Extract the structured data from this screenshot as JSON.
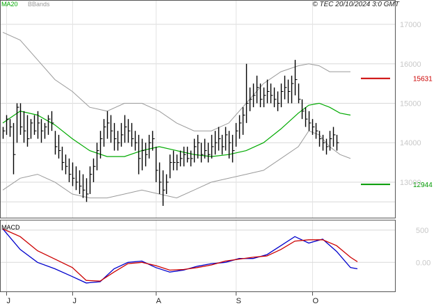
{
  "header": {
    "legend": [
      {
        "label": "MA20",
        "color": "#00aa00"
      },
      {
        "label": "BBands",
        "color": "#9a9a9a"
      }
    ],
    "copyright": "© TEC 20/10/2024 3:0 GMT"
  },
  "price_panel": {
    "y_ticks": [
      "17000",
      "16000",
      "15000",
      "14000",
      "13000"
    ],
    "levels": [
      {
        "label": "15631",
        "value": 15631,
        "color": "#cc0000"
      },
      {
        "label": "12944",
        "value": 12944,
        "color": "#009900"
      }
    ]
  },
  "macd_panel": {
    "label": "MACD",
    "y_ticks": [
      "500",
      "0.00"
    ]
  },
  "x_axis": {
    "month_labels": [
      "J",
      "J",
      "A",
      "S",
      "O"
    ]
  },
  "chart_data": [
    {
      "type": "ohlc",
      "y_range": [
        12100,
        17600
      ],
      "series_colors": {
        "price": "#000000",
        "ma20": "#00aa00",
        "bbands": "#9a9a9a"
      },
      "month_starts": [
        1,
        20,
        44,
        67,
        89
      ],
      "grid": true,
      "bars": [
        {
          "h": 14400,
          "l": 14100,
          "c": 14300
        },
        {
          "h": 14700,
          "l": 14200,
          "c": 14600
        },
        {
          "h": 14600,
          "l": 14150,
          "c": 14400
        },
        {
          "h": 14500,
          "l": 13200,
          "c": 13700
        },
        {
          "h": 15000,
          "l": 14000,
          "c": 14900
        },
        {
          "h": 15000,
          "l": 14200,
          "c": 14400
        },
        {
          "h": 14800,
          "l": 14000,
          "c": 14300
        },
        {
          "h": 14700,
          "l": 13900,
          "c": 14100
        },
        {
          "h": 14600,
          "l": 14100,
          "c": 14500
        },
        {
          "h": 14700,
          "l": 14200,
          "c": 14300
        },
        {
          "h": 14800,
          "l": 14100,
          "c": 14500
        },
        {
          "h": 14600,
          "l": 14000,
          "c": 14300
        },
        {
          "h": 14500,
          "l": 14100,
          "c": 14400
        },
        {
          "h": 14700,
          "l": 14200,
          "c": 14600
        },
        {
          "h": 14800,
          "l": 14300,
          "c": 14500
        },
        {
          "h": 14300,
          "l": 13700,
          "c": 13900
        },
        {
          "h": 14200,
          "l": 13600,
          "c": 13800
        },
        {
          "h": 13900,
          "l": 13300,
          "c": 13500
        },
        {
          "h": 13700,
          "l": 13200,
          "c": 13400
        },
        {
          "h": 13600,
          "l": 13000,
          "c": 13200
        },
        {
          "h": 13500,
          "l": 12900,
          "c": 13100
        },
        {
          "h": 13400,
          "l": 12800,
          "c": 13000
        },
        {
          "h": 13300,
          "l": 12700,
          "c": 12900
        },
        {
          "h": 13200,
          "l": 12600,
          "c": 12800
        },
        {
          "h": 13100,
          "l": 12500,
          "c": 12700
        },
        {
          "h": 13400,
          "l": 12700,
          "c": 13200
        },
        {
          "h": 13600,
          "l": 13000,
          "c": 13400
        },
        {
          "h": 14000,
          "l": 13300,
          "c": 13800
        },
        {
          "h": 14300,
          "l": 13600,
          "c": 14100
        },
        {
          "h": 14600,
          "l": 13900,
          "c": 14400
        },
        {
          "h": 14800,
          "l": 14100,
          "c": 14500
        },
        {
          "h": 14700,
          "l": 14000,
          "c": 14300
        },
        {
          "h": 14500,
          "l": 13800,
          "c": 14100
        },
        {
          "h": 14300,
          "l": 13800,
          "c": 14000
        },
        {
          "h": 14500,
          "l": 13900,
          "c": 14200
        },
        {
          "h": 14700,
          "l": 14000,
          "c": 14400
        },
        {
          "h": 14600,
          "l": 14000,
          "c": 14300
        },
        {
          "h": 14500,
          "l": 13900,
          "c": 14100
        },
        {
          "h": 14300,
          "l": 13800,
          "c": 14000
        },
        {
          "h": 14200,
          "l": 13200,
          "c": 13600
        },
        {
          "h": 14100,
          "l": 13300,
          "c": 13800
        },
        {
          "h": 14000,
          "l": 13400,
          "c": 13700
        },
        {
          "h": 14200,
          "l": 13600,
          "c": 14000
        },
        {
          "h": 14300,
          "l": 13800,
          "c": 14100
        },
        {
          "h": 13900,
          "l": 13000,
          "c": 13300
        },
        {
          "h": 13500,
          "l": 12700,
          "c": 13000
        },
        {
          "h": 13300,
          "l": 12400,
          "c": 12800
        },
        {
          "h": 13200,
          "l": 12700,
          "c": 13000
        },
        {
          "h": 13700,
          "l": 13100,
          "c": 13500
        },
        {
          "h": 13800,
          "l": 13300,
          "c": 13500
        },
        {
          "h": 13700,
          "l": 13300,
          "c": 13500
        },
        {
          "h": 13800,
          "l": 13400,
          "c": 13600
        },
        {
          "h": 13900,
          "l": 13400,
          "c": 13700
        },
        {
          "h": 13900,
          "l": 13500,
          "c": 13600
        },
        {
          "h": 13800,
          "l": 13400,
          "c": 13600
        },
        {
          "h": 14100,
          "l": 13500,
          "c": 13900
        },
        {
          "h": 14200,
          "l": 13600,
          "c": 14000
        },
        {
          "h": 14000,
          "l": 13500,
          "c": 13700
        },
        {
          "h": 14100,
          "l": 13600,
          "c": 13800
        },
        {
          "h": 14000,
          "l": 13500,
          "c": 13700
        },
        {
          "h": 14200,
          "l": 13600,
          "c": 13900
        },
        {
          "h": 14300,
          "l": 13700,
          "c": 14000
        },
        {
          "h": 14400,
          "l": 13800,
          "c": 14100
        },
        {
          "h": 14200,
          "l": 13700,
          "c": 13900
        },
        {
          "h": 14400,
          "l": 13800,
          "c": 14200
        },
        {
          "h": 14300,
          "l": 13600,
          "c": 14000
        },
        {
          "h": 14200,
          "l": 13500,
          "c": 13800
        },
        {
          "h": 14500,
          "l": 13900,
          "c": 14300
        },
        {
          "h": 14700,
          "l": 14100,
          "c": 14500
        },
        {
          "h": 14900,
          "l": 14200,
          "c": 14700
        },
        {
          "h": 16000,
          "l": 14500,
          "c": 15000
        },
        {
          "h": 15400,
          "l": 14800,
          "c": 15100
        },
        {
          "h": 15500,
          "l": 14900,
          "c": 15200
        },
        {
          "h": 15700,
          "l": 15000,
          "c": 15400
        },
        {
          "h": 15500,
          "l": 14900,
          "c": 15100
        },
        {
          "h": 15400,
          "l": 14900,
          "c": 15200
        },
        {
          "h": 15600,
          "l": 15000,
          "c": 15300
        },
        {
          "h": 15500,
          "l": 15000,
          "c": 15200
        },
        {
          "h": 15400,
          "l": 14900,
          "c": 15100
        },
        {
          "h": 15300,
          "l": 14800,
          "c": 15000
        },
        {
          "h": 15500,
          "l": 14900,
          "c": 15300
        },
        {
          "h": 15700,
          "l": 15100,
          "c": 15400
        },
        {
          "h": 15600,
          "l": 15000,
          "c": 15300
        },
        {
          "h": 15700,
          "l": 15000,
          "c": 15500
        },
        {
          "h": 16100,
          "l": 15200,
          "c": 15600
        },
        {
          "h": 15500,
          "l": 15000,
          "c": 15100
        },
        {
          "h": 15100,
          "l": 14600,
          "c": 14800
        },
        {
          "h": 14900,
          "l": 14400,
          "c": 14600
        },
        {
          "h": 14800,
          "l": 14300,
          "c": 14500
        },
        {
          "h": 14600,
          "l": 14200,
          "c": 14400
        },
        {
          "h": 14500,
          "l": 14100,
          "c": 14300
        },
        {
          "h": 14300,
          "l": 13900,
          "c": 14100
        },
        {
          "h": 14200,
          "l": 13800,
          "c": 14000
        },
        {
          "h": 14100,
          "l": 13700,
          "c": 13900
        },
        {
          "h": 14300,
          "l": 13800,
          "c": 14100
        },
        {
          "h": 14400,
          "l": 13900,
          "c": 14200
        },
        {
          "h": 14200,
          "l": 13800,
          "c": 14000
        }
      ],
      "ma20": [
        [
          0,
          14500
        ],
        [
          5,
          14800
        ],
        [
          10,
          14700
        ],
        [
          15,
          14450
        ],
        [
          20,
          14100
        ],
        [
          25,
          13800
        ],
        [
          30,
          13650
        ],
        [
          35,
          13650
        ],
        [
          40,
          13800
        ],
        [
          45,
          13900
        ],
        [
          50,
          13800
        ],
        [
          55,
          13700
        ],
        [
          60,
          13650
        ],
        [
          65,
          13700
        ],
        [
          70,
          13800
        ],
        [
          75,
          14000
        ],
        [
          80,
          14350
        ],
        [
          85,
          14750
        ],
        [
          88,
          14950
        ],
        [
          91,
          15000
        ],
        [
          94,
          14900
        ],
        [
          97,
          14750
        ],
        [
          100,
          14700
        ]
      ],
      "bb_upper": [
        [
          0,
          16800
        ],
        [
          5,
          16600
        ],
        [
          10,
          16100
        ],
        [
          15,
          15600
        ],
        [
          20,
          15300
        ],
        [
          25,
          14900
        ],
        [
          30,
          14800
        ],
        [
          35,
          15000
        ],
        [
          40,
          15000
        ],
        [
          45,
          14800
        ],
        [
          50,
          14500
        ],
        [
          55,
          14300
        ],
        [
          60,
          14300
        ],
        [
          65,
          14500
        ],
        [
          70,
          15000
        ],
        [
          75,
          15500
        ],
        [
          80,
          15800
        ],
        [
          85,
          15950
        ],
        [
          88,
          16000
        ],
        [
          91,
          15950
        ],
        [
          94,
          15800
        ],
        [
          97,
          15800
        ],
        [
          100,
          15800
        ]
      ],
      "bb_lower": [
        [
          0,
          12800
        ],
        [
          5,
          13100
        ],
        [
          10,
          13200
        ],
        [
          15,
          13000
        ],
        [
          20,
          12700
        ],
        [
          25,
          12600
        ],
        [
          30,
          12600
        ],
        [
          35,
          12700
        ],
        [
          40,
          12800
        ],
        [
          45,
          12700
        ],
        [
          50,
          12600
        ],
        [
          55,
          12800
        ],
        [
          60,
          13000
        ],
        [
          65,
          13100
        ],
        [
          70,
          13200
        ],
        [
          75,
          13300
        ],
        [
          80,
          13600
        ],
        [
          85,
          13900
        ],
        [
          88,
          14300
        ],
        [
          91,
          14200
        ],
        [
          94,
          13900
        ],
        [
          97,
          13700
        ],
        [
          100,
          13600
        ]
      ]
    },
    {
      "type": "line",
      "name": "MACD",
      "y_range": [
        -450,
        650
      ],
      "series": [
        {
          "color": "#0000cc",
          "points": [
            [
              0,
              520
            ],
            [
              5,
              200
            ],
            [
              10,
              0
            ],
            [
              15,
              -100
            ],
            [
              20,
              -220
            ],
            [
              24,
              -320
            ],
            [
              28,
              -300
            ],
            [
              32,
              -100
            ],
            [
              36,
              0
            ],
            [
              40,
              20
            ],
            [
              44,
              -80
            ],
            [
              48,
              -150
            ],
            [
              52,
              -120
            ],
            [
              56,
              -60
            ],
            [
              60,
              -20
            ],
            [
              64,
              0
            ],
            [
              68,
              60
            ],
            [
              72,
              60
            ],
            [
              76,
              120
            ],
            [
              80,
              260
            ],
            [
              84,
              400
            ],
            [
              88,
              300
            ],
            [
              92,
              360
            ],
            [
              96,
              170
            ],
            [
              100,
              -80
            ],
            [
              102,
              -100
            ]
          ]
        },
        {
          "color": "#cc0000",
          "points": [
            [
              0,
              520
            ],
            [
              5,
              400
            ],
            [
              10,
              180
            ],
            [
              15,
              50
            ],
            [
              20,
              -80
            ],
            [
              24,
              -280
            ],
            [
              28,
              -290
            ],
            [
              32,
              -150
            ],
            [
              36,
              -20
            ],
            [
              40,
              0
            ],
            [
              44,
              -50
            ],
            [
              48,
              -120
            ],
            [
              52,
              -110
            ],
            [
              56,
              -80
            ],
            [
              60,
              -40
            ],
            [
              64,
              20
            ],
            [
              68,
              50
            ],
            [
              72,
              80
            ],
            [
              76,
              100
            ],
            [
              80,
              200
            ],
            [
              84,
              330
            ],
            [
              88,
              350
            ],
            [
              92,
              350
            ],
            [
              96,
              260
            ],
            [
              100,
              80
            ],
            [
              102,
              10
            ]
          ]
        }
      ]
    }
  ]
}
